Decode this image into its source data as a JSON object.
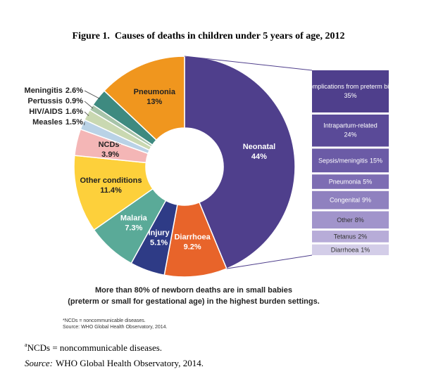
{
  "chart_data": [
    {
      "type": "pie",
      "title": "Figure 1.  Causes of deaths in children under 5 years of age, 2012",
      "categories": [
        "Neonatal",
        "Diarrhoea",
        "Injury",
        "Malaria",
        "Other conditions",
        "NCDs*",
        "Measles",
        "HIV/AIDS",
        "Pertussis",
        "Meningitis",
        "Pneumonia"
      ],
      "values": [
        44,
        9.2,
        5.1,
        7.3,
        11.4,
        3.9,
        1.5,
        1.6,
        0.9,
        2.6,
        13
      ],
      "value_labels": [
        "44%",
        "9.2%",
        "5.1%",
        "7.3%",
        "11.4%",
        "3.9%",
        "1.5%",
        "1.6%",
        "0.9%",
        "2.6%",
        "13%"
      ],
      "colors": [
        "#4f3f8c",
        "#e8642a",
        "#2e3b86",
        "#5aaa98",
        "#fdd03b",
        "#f4b6b6",
        "#b9d2e6",
        "#c9d8b1",
        "#a7c4a9",
        "#3e8a80",
        "#f0961e"
      ],
      "annotations": [
        "More than 80% of newborn deaths are in small babies",
        "(preterm or small for gestational age) in the highest burden settings.",
        "*NCDs = noncommunicable diseases.",
        "Source: WHO Global Health Observatory, 2014."
      ]
    },
    {
      "type": "bar",
      "categories": [
        "Complications from preterm birth",
        "Intrapartum-related",
        "Sepsis/meningitis",
        "Pneumonia",
        "Congenital",
        "Other",
        "Tetanus",
        "Diarrhoea"
      ],
      "values": [
        35,
        24,
        15,
        5,
        9,
        8,
        2,
        1
      ],
      "value_labels": [
        "35%",
        "24%",
        "15%",
        "5%",
        "9%",
        "8%",
        "2%",
        "1%"
      ],
      "colors": [
        "#4f3f8c",
        "#5a4a98",
        "#6b5ba6",
        "#7d6db3",
        "#8f81bf",
        "#a194cb",
        "#b7acd8",
        "#d3cde8"
      ]
    }
  ],
  "footnotes": {
    "marker": "a",
    "text": "NCDs = noncommunicable diseases.",
    "source_label": "Source:",
    "source": "WHO Global Health Observatory, 2014."
  }
}
